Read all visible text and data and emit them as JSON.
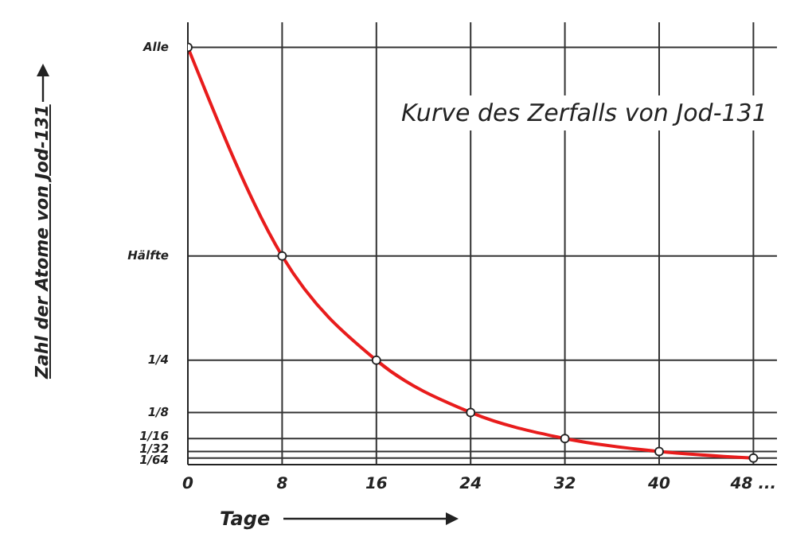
{
  "chart_data": {
    "type": "line",
    "title": "Kurve des Zerfalls von Jod-131",
    "xlabel": "Tage",
    "ylabel": "Zahl der Atome von Jod-131",
    "x": [
      0,
      8,
      16,
      24,
      32,
      40,
      48
    ],
    "series": [
      {
        "color": "#e81c1c",
        "values": [
          1,
          0.5,
          0.25,
          0.125,
          0.0625,
          0.03125,
          0.015625
        ]
      }
    ],
    "xlim": [
      0,
      50
    ],
    "xticks": [
      0,
      8,
      16,
      24,
      32,
      40,
      {
        "value": 48,
        "label": "48 ..."
      }
    ],
    "ylim": [
      0,
      1.06
    ],
    "yticks": [
      {
        "value": 1,
        "label": "Alle"
      },
      {
        "value": 0.5,
        "label": "Hälfte"
      },
      {
        "value": 0.25,
        "label": "1/4"
      },
      {
        "value": 0.125,
        "label": "1/8"
      },
      {
        "value": 0.0625,
        "label": "1/16"
      },
      {
        "value": 0.03125,
        "label": "1/32"
      },
      {
        "value": 0.015625,
        "label": "1/64"
      }
    ],
    "grid": true,
    "marker": "circle",
    "line_style": "solid"
  }
}
